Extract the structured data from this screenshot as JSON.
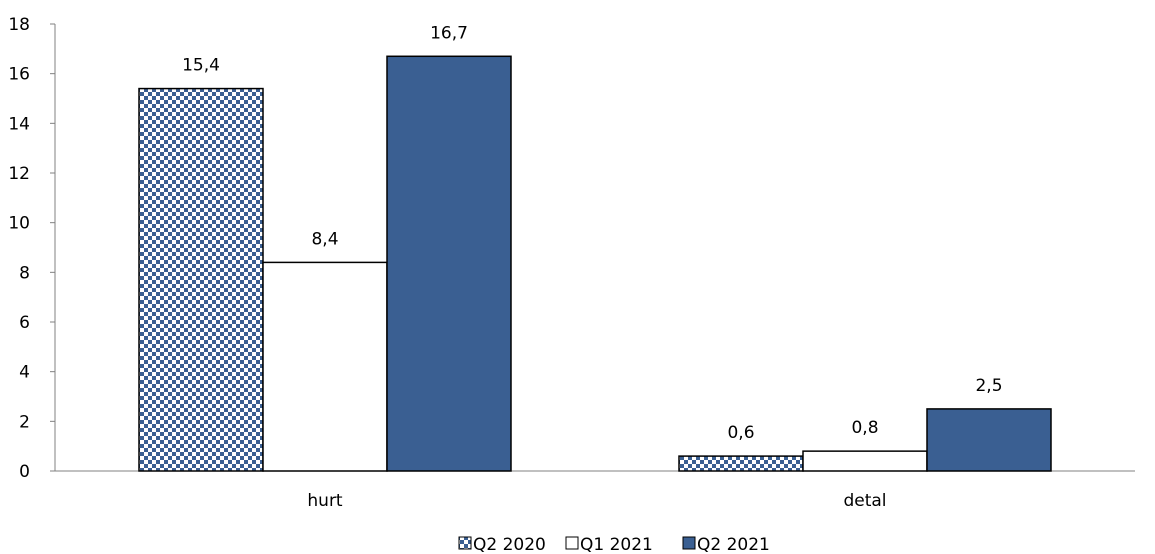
{
  "chart_data": {
    "type": "bar",
    "categories": [
      "hurt",
      "detal"
    ],
    "series": [
      {
        "name": "Q2 2020",
        "values": [
          15.4,
          0.6
        ],
        "labels": [
          "15,4",
          "0,6"
        ],
        "style": "checkered",
        "color": "#3a5f92"
      },
      {
        "name": "Q1 2021",
        "values": [
          8.4,
          0.8
        ],
        "labels": [
          "8,4",
          "0,8"
        ],
        "style": "hollow",
        "color": "#ffffff"
      },
      {
        "name": "Q2 2021",
        "values": [
          16.7,
          2.5
        ],
        "labels": [
          "16,7",
          "2,5"
        ],
        "style": "solid",
        "color": "#3a5f92"
      }
    ],
    "ylim": [
      0,
      18
    ],
    "yticks": [
      0,
      2,
      4,
      6,
      8,
      10,
      12,
      14,
      16,
      18
    ],
    "title": "",
    "xlabel": "",
    "ylabel": "",
    "legend_position": "bottom",
    "grid": false
  }
}
